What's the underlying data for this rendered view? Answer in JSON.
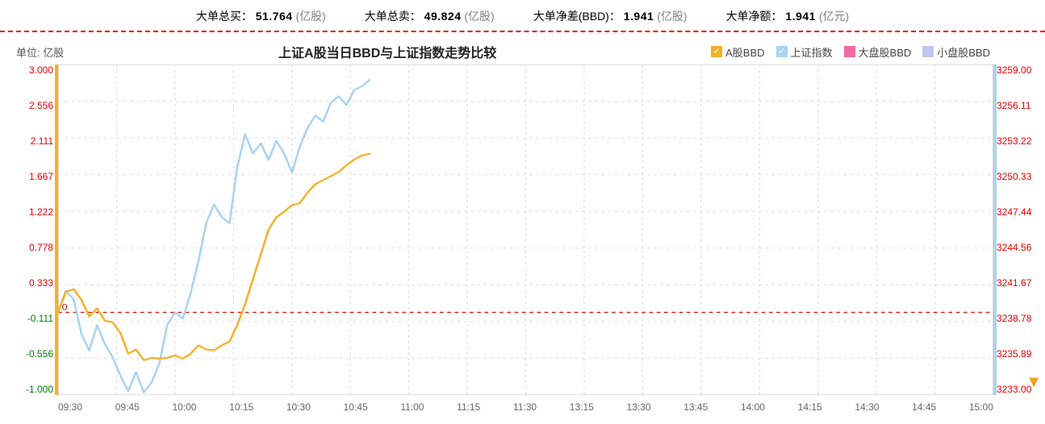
{
  "stats": {
    "buy_label": "大单总买：",
    "buy_val": "51.764",
    "buy_unit": "(亿股)",
    "sell_label": "大单总卖：",
    "sell_val": "49.824",
    "sell_unit": "(亿股)",
    "diff_label": "大单净差(BBD)：",
    "diff_val": "1.941",
    "diff_unit": "(亿股)",
    "amt_label": "大单净额：",
    "amt_val": "1.941",
    "amt_unit": "(亿元)"
  },
  "chart": {
    "unit_label": "单位: 亿股",
    "title": "上证A股当日BBD与上证指数走势比较",
    "legend": [
      {
        "label": "A股BBD",
        "color": "#f5b02a",
        "on": true
      },
      {
        "label": "上证指数",
        "color": "#a9d3ef",
        "on": true
      },
      {
        "label": "大盘股BBD",
        "color": "#f46aa0",
        "on": false
      },
      {
        "label": "小盘股BBD",
        "color": "#c0c5f2",
        "on": false
      }
    ],
    "y_left": {
      "ticks": [
        "3.000",
        "2.556",
        "2.111",
        "1.667",
        "1.222",
        "0.778",
        "0.333",
        "-0.111",
        "-0.556",
        "-1.000"
      ],
      "min": -1.0,
      "max": 3.0
    },
    "y_right": {
      "ticks": [
        "3259.00",
        "3256.11",
        "3253.22",
        "3250.33",
        "3247.44",
        "3244.56",
        "3241.67",
        "3238.78",
        "3235.89",
        "3233.00"
      ],
      "min": 3233.0,
      "max": 3259.0
    },
    "x_axis": {
      "labels": [
        "09:30",
        "09:45",
        "10:00",
        "10:15",
        "10:30",
        "10:45",
        "11:00",
        "11:15",
        "11:30",
        "13:15",
        "13:30",
        "13:45",
        "14:00",
        "14:15",
        "14:30",
        "14:45",
        "15:00"
      ],
      "session_minutes": 240
    },
    "zero_line_y": 0,
    "series_bbd": {
      "color": "#f5b02a",
      "width": 2.2,
      "points": [
        [
          0,
          0.0
        ],
        [
          2,
          0.25
        ],
        [
          4,
          0.28
        ],
        [
          6,
          0.15
        ],
        [
          8,
          -0.05
        ],
        [
          10,
          0.05
        ],
        [
          12,
          -0.1
        ],
        [
          14,
          -0.12
        ],
        [
          16,
          -0.25
        ],
        [
          18,
          -0.5
        ],
        [
          20,
          -0.45
        ],
        [
          22,
          -0.58
        ],
        [
          24,
          -0.55
        ],
        [
          26,
          -0.56
        ],
        [
          28,
          -0.55
        ],
        [
          30,
          -0.52
        ],
        [
          32,
          -0.56
        ],
        [
          34,
          -0.5
        ],
        [
          36,
          -0.4
        ],
        [
          38,
          -0.45
        ],
        [
          40,
          -0.46
        ],
        [
          42,
          -0.4
        ],
        [
          44,
          -0.35
        ],
        [
          46,
          -0.15
        ],
        [
          48,
          0.1
        ],
        [
          50,
          0.4
        ],
        [
          52,
          0.7
        ],
        [
          54,
          1.0
        ],
        [
          56,
          1.15
        ],
        [
          58,
          1.22
        ],
        [
          60,
          1.3
        ],
        [
          62,
          1.32
        ],
        [
          64,
          1.45
        ],
        [
          66,
          1.55
        ],
        [
          68,
          1.6
        ],
        [
          70,
          1.65
        ],
        [
          72,
          1.7
        ],
        [
          74,
          1.78
        ],
        [
          76,
          1.85
        ],
        [
          78,
          1.9
        ],
        [
          80,
          1.92
        ]
      ]
    },
    "series_index": {
      "color": "#a9d3ef",
      "width": 2.2,
      "points": [
        [
          0,
          3239.5
        ],
        [
          2,
          3241.2
        ],
        [
          4,
          3240.5
        ],
        [
          6,
          3237.8
        ],
        [
          8,
          3236.5
        ],
        [
          10,
          3238.5
        ],
        [
          12,
          3237.0
        ],
        [
          14,
          3236.0
        ],
        [
          16,
          3234.5
        ],
        [
          18,
          3233.3
        ],
        [
          20,
          3234.8
        ],
        [
          22,
          3233.2
        ],
        [
          24,
          3234.0
        ],
        [
          26,
          3235.5
        ],
        [
          28,
          3238.5
        ],
        [
          30,
          3239.5
        ],
        [
          32,
          3239.0
        ],
        [
          34,
          3241.0
        ],
        [
          36,
          3243.5
        ],
        [
          38,
          3246.5
        ],
        [
          40,
          3248.0
        ],
        [
          42,
          3247.0
        ],
        [
          44,
          3246.5
        ],
        [
          46,
          3251.0
        ],
        [
          48,
          3253.5
        ],
        [
          50,
          3252.0
        ],
        [
          52,
          3252.8
        ],
        [
          54,
          3251.5
        ],
        [
          56,
          3253.0
        ],
        [
          58,
          3252.0
        ],
        [
          60,
          3250.5
        ],
        [
          62,
          3252.5
        ],
        [
          64,
          3254.0
        ],
        [
          66,
          3255.0
        ],
        [
          68,
          3254.5
        ],
        [
          70,
          3256.0
        ],
        [
          72,
          3256.5
        ],
        [
          74,
          3255.8
        ],
        [
          76,
          3257.0
        ],
        [
          78,
          3257.3
        ],
        [
          80,
          3257.8
        ]
      ]
    },
    "colors": {
      "grid": "#dddddd",
      "border": "#bbbbbb",
      "zero_line": "#e60000",
      "axis_left": "#f5b02a",
      "axis_right": "#a9d3ef",
      "background": "#ffffff"
    }
  }
}
